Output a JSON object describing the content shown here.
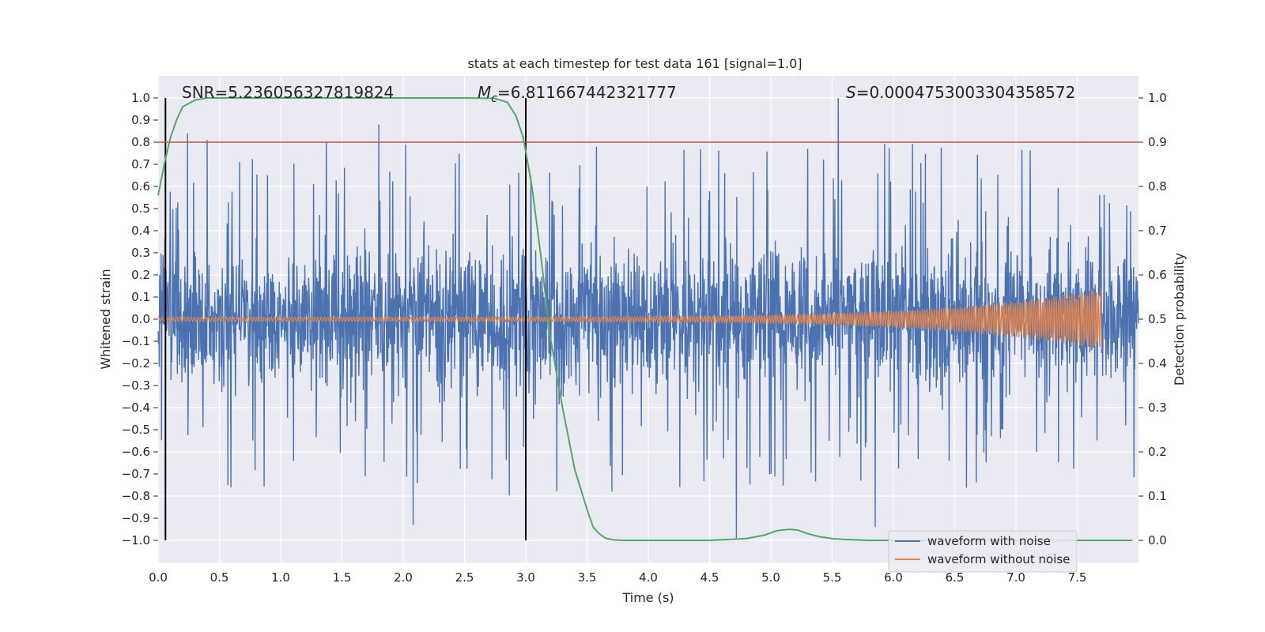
{
  "chart_data": {
    "type": "line",
    "title": "stats at each timestep for test data 161 [signal=1.0]",
    "xlabel": "Time (s)",
    "ylabel": "Whitened strain",
    "y2label": "Detection probability",
    "xlim": [
      0.0,
      8.0
    ],
    "ylim": [
      -1.1,
      1.1
    ],
    "y2lim": [
      -0.05,
      1.05
    ],
    "x_ticks": [
      "0.0",
      "0.5",
      "1.0",
      "1.5",
      "2.0",
      "2.5",
      "3.0",
      "3.5",
      "4.0",
      "4.5",
      "5.0",
      "5.5",
      "6.0",
      "6.5",
      "7.0",
      "7.5"
    ],
    "y_ticks": [
      "1.0",
      "0.9",
      "0.8",
      "0.7",
      "0.6",
      "0.5",
      "0.4",
      "0.3",
      "0.2",
      "0.1",
      "0.0",
      "−0.1",
      "−0.2",
      "−0.3",
      "−0.4",
      "−0.5",
      "−0.6",
      "−0.7",
      "−0.8",
      "−0.9",
      "−1.0"
    ],
    "y2_ticks": [
      "1.0",
      "0.9",
      "0.8",
      "0.7",
      "0.6",
      "0.5",
      "0.4",
      "0.3",
      "0.2",
      "0.1",
      "0.0"
    ],
    "grid": true,
    "legend_position": "lower-right",
    "annotations": {
      "snr": "SNR=5.236056327819824",
      "mc_symbol": "M",
      "mc_subscript": "c",
      "mc_value": "=6.811667442321777",
      "s_symbol": "S",
      "s_value": "=0.0004753003304358572"
    },
    "threshold": {
      "value": 0.9,
      "axis": "right",
      "color": "#c44e52"
    },
    "vertical_markers": [
      0.06,
      3.0
    ],
    "series": [
      {
        "name": "waveform with noise",
        "color": "#4c72b0",
        "axis": "left",
        "x_range": [
          0.0,
          8.0
        ],
        "envelope": {
          "typical": 0.28,
          "extreme_max": 1.0,
          "extreme_min": -0.99
        },
        "notable_peaks": [
          [
            0.24,
            0.84
          ],
          [
            0.4,
            0.81
          ],
          [
            1.8,
            0.88
          ],
          [
            5.55,
            1.0
          ],
          [
            4.72,
            -0.99
          ],
          [
            5.85,
            -0.94
          ],
          [
            2.08,
            -0.93
          ]
        ]
      },
      {
        "name": "waveform without noise",
        "color": "#dd8452",
        "axis": "left",
        "x_range": [
          0.0,
          7.7
        ],
        "amplitude_start": 0.01,
        "amplitude_end": 0.14,
        "peak_time": 7.7
      },
      {
        "name": "detection probability",
        "color": "#55a868",
        "axis": "right",
        "x": [
          0.0,
          0.05,
          0.1,
          0.15,
          0.2,
          0.3,
          0.4,
          0.6,
          1.0,
          2.0,
          2.5,
          2.75,
          2.85,
          2.92,
          2.98,
          3.05,
          3.12,
          3.2,
          3.3,
          3.4,
          3.5,
          3.55,
          3.6,
          3.65,
          3.72,
          3.8,
          4.0,
          4.5,
          4.8,
          4.95,
          5.05,
          5.15,
          5.22,
          5.3,
          5.4,
          5.5,
          5.6,
          5.8,
          6.0,
          7.0,
          7.95
        ],
        "y": [
          0.78,
          0.85,
          0.91,
          0.95,
          0.98,
          0.995,
          1.0,
          1.0,
          1.0,
          1.0,
          1.0,
          0.999,
          0.99,
          0.96,
          0.91,
          0.8,
          0.65,
          0.46,
          0.3,
          0.16,
          0.07,
          0.03,
          0.015,
          0.005,
          0.001,
          0.0,
          0.0,
          0.0,
          0.004,
          0.012,
          0.022,
          0.025,
          0.023,
          0.015,
          0.008,
          0.004,
          0.002,
          0.0,
          0.0,
          0.0,
          0.0
        ]
      }
    ]
  }
}
